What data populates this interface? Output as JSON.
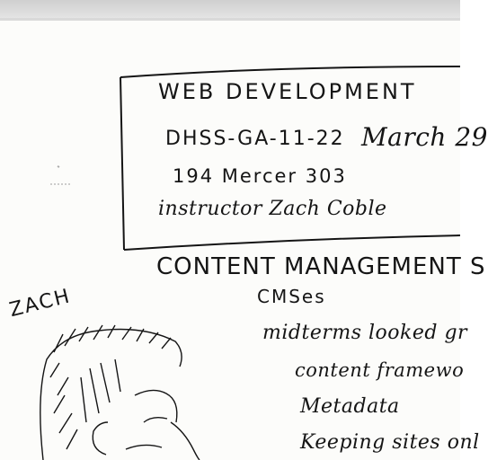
{
  "title_box": {
    "line1": "WEB DEVELOPMENT",
    "course_code": "DHSS-GA-11-22",
    "date": "March 29",
    "room": "194 Mercer 303",
    "instructor": "instructor Zach Coble"
  },
  "section_heading": "CONTENT MANAGEMENT S",
  "notes": [
    "CMSes",
    "midterms looked gr",
    "content framewo",
    "Metadata",
    "Keeping sites onl"
  ],
  "portrait_label": "ZACH",
  "colors": {
    "ink": "#151515",
    "paper": "#fcfcfa",
    "band": "#d0d0d0"
  }
}
